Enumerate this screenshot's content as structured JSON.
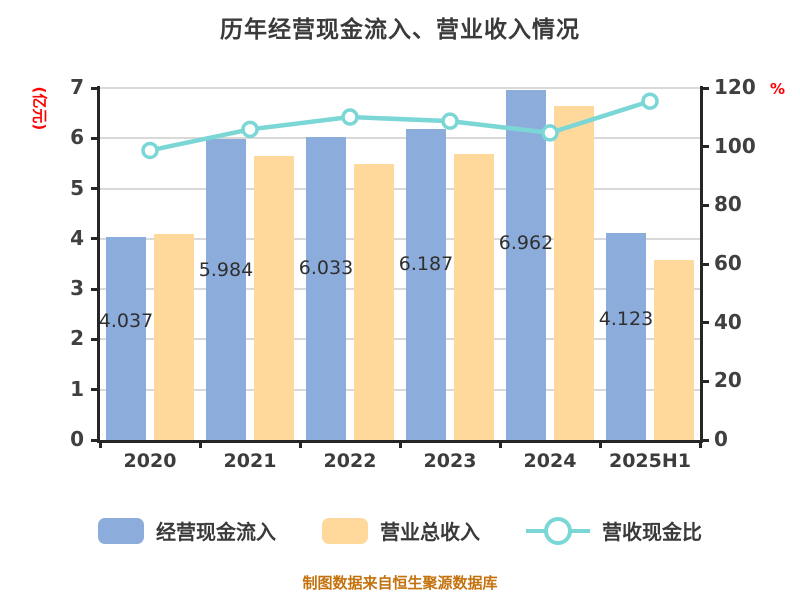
{
  "title": "历年经营现金流入、营业收入情况",
  "caption": "制图数据来自恒生聚源数据库",
  "left_axis": {
    "label": "(亿元)",
    "ticks": [
      0,
      1,
      2,
      3,
      4,
      5,
      6,
      7
    ],
    "min": 0,
    "max": 7,
    "label_color": "#ff0000"
  },
  "right_axis": {
    "label": "%",
    "ticks": [
      0,
      20,
      40,
      60,
      80,
      100,
      120
    ],
    "min": 0,
    "max": 120,
    "label_color": "#ff0000"
  },
  "chart_data": {
    "type": "bar",
    "subtype": "grouped-bar-with-line",
    "categories": [
      "2020",
      "2021",
      "2022",
      "2023",
      "2024",
      "2025H1"
    ],
    "series": [
      {
        "name": "经营现金流入",
        "type": "bar",
        "axis": "left",
        "color": "#8caddb",
        "values": [
          4.037,
          5.984,
          6.033,
          6.187,
          6.962,
          4.123
        ],
        "labels": [
          "4.037",
          "5.984",
          "6.033",
          "6.187",
          "6.962",
          "4.123"
        ]
      },
      {
        "name": "营业总收入",
        "type": "bar",
        "axis": "left",
        "color": "#ffd99b",
        "values": [
          4.09,
          5.65,
          5.48,
          5.69,
          6.65,
          3.57
        ]
      },
      {
        "name": "营收现金比",
        "type": "line",
        "axis": "right",
        "color": "#7bd6d6",
        "marker": "circle-white-fill",
        "values": [
          98.7,
          105.9,
          110.1,
          108.7,
          104.7,
          115.5
        ]
      }
    ],
    "ylim_left": [
      0,
      7
    ],
    "ylim_right": [
      0,
      120
    ],
    "grid": "horizontal",
    "legend_position": "bottom",
    "gridline_color": "#d9d9d9",
    "axis_color": "#262626",
    "title": "历年经营现金流入、营业收入情况"
  }
}
